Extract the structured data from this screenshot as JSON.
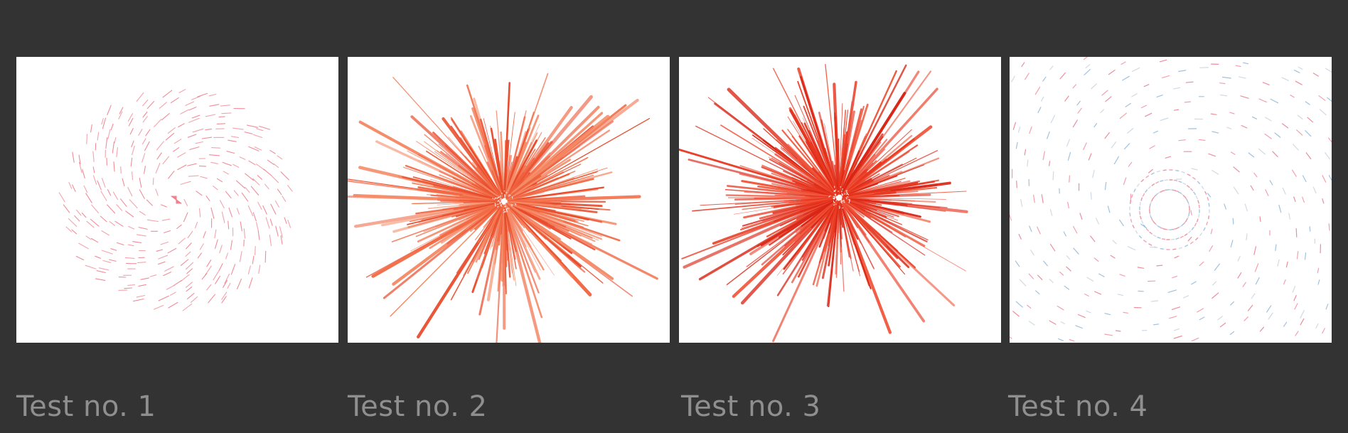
{
  "panels": [
    {
      "label": "Test no. 1",
      "style": "spiral-dashes",
      "colors": [
        "#f29aa4",
        "#ee7f8d"
      ]
    },
    {
      "label": "Test no. 2",
      "style": "burst",
      "colors": [
        "#f26a45",
        "#f58a66",
        "#e84a2a"
      ]
    },
    {
      "label": "Test no. 3",
      "style": "burst",
      "colors": [
        "#e8361f",
        "#f0553a",
        "#d92515"
      ]
    },
    {
      "label": "Test no. 4",
      "style": "vortex-dashes",
      "colors": [
        "#f28fa0",
        "#8fb7d9",
        "#c8d4de",
        "#e87a8c"
      ]
    }
  ]
}
